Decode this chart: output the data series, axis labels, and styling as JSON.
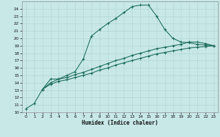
{
  "xlabel": "Humidex (Indice chaleur)",
  "bg_color": "#c8e8e8",
  "grid_color": "#b0d4d4",
  "line_color": "#1a6b5a",
  "xlim": [
    -0.5,
    23.5
  ],
  "ylim": [
    10,
    25
  ],
  "xticks": [
    0,
    1,
    2,
    3,
    4,
    5,
    6,
    7,
    8,
    9,
    10,
    11,
    12,
    13,
    14,
    15,
    16,
    17,
    18,
    19,
    20,
    21,
    22,
    23
  ],
  "yticks": [
    10,
    11,
    12,
    13,
    14,
    15,
    16,
    17,
    18,
    19,
    20,
    21,
    22,
    23,
    24
  ],
  "series1_x": [
    0,
    1,
    2,
    3,
    4,
    5,
    6,
    7,
    8,
    9,
    10,
    11,
    12,
    13,
    14,
    15,
    16,
    17,
    18,
    19,
    20,
    21,
    22,
    23
  ],
  "series1_y": [
    10.5,
    11.2,
    13.1,
    14.5,
    14.5,
    15.0,
    15.5,
    17.2,
    20.3,
    21.2,
    22.0,
    22.7,
    23.5,
    24.3,
    24.5,
    24.5,
    23.0,
    21.2,
    20.0,
    19.5,
    19.4,
    19.2,
    19.1,
    19.0
  ],
  "series2_x": [
    2,
    3,
    4,
    5,
    6,
    7,
    8,
    9,
    10,
    11,
    12,
    13,
    14,
    15,
    16,
    17,
    18,
    19,
    20,
    21,
    22,
    23
  ],
  "series2_y": [
    13.1,
    14.0,
    14.5,
    14.7,
    15.1,
    15.4,
    15.8,
    16.2,
    16.6,
    17.0,
    17.3,
    17.7,
    18.0,
    18.3,
    18.6,
    18.8,
    19.0,
    19.2,
    19.5,
    19.5,
    19.3,
    19.0
  ],
  "series3_x": [
    2,
    3,
    4,
    5,
    6,
    7,
    8,
    9,
    10,
    11,
    12,
    13,
    14,
    15,
    16,
    17,
    18,
    19,
    20,
    21,
    22,
    23
  ],
  "series3_y": [
    13.1,
    13.8,
    14.2,
    14.4,
    14.7,
    15.0,
    15.3,
    15.7,
    16.0,
    16.4,
    16.7,
    17.0,
    17.3,
    17.6,
    17.9,
    18.1,
    18.3,
    18.5,
    18.7,
    18.8,
    18.9,
    19.0
  ]
}
